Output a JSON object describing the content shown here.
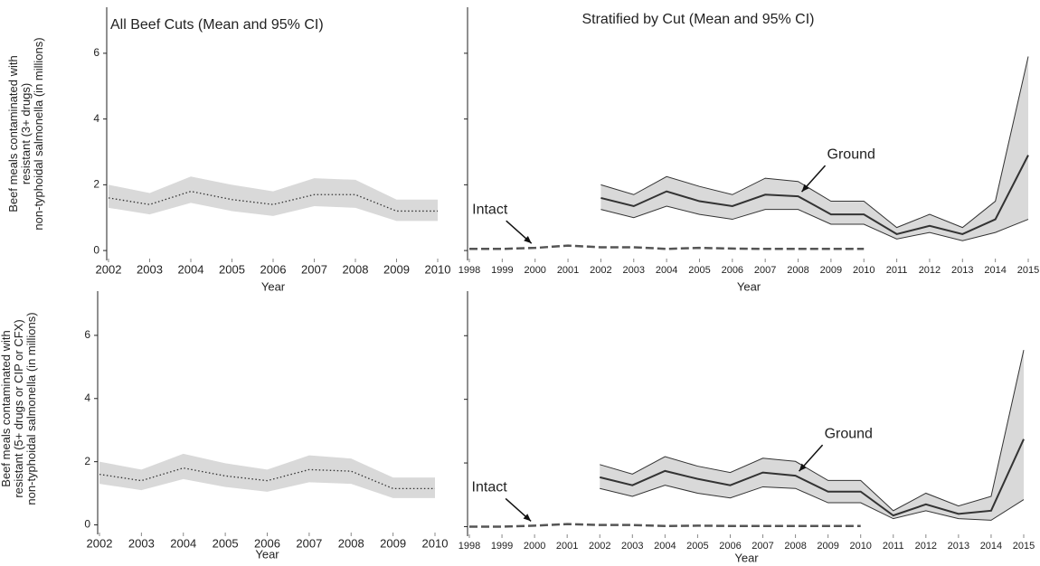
{
  "chart_data": [
    {
      "type": "line",
      "title": "All Beef Cuts (Mean and 95% CI)",
      "x_label": "Year",
      "y_label": [
        "Beef meals contaminated with",
        "resistant (3+ drugs)",
        "non-typhoidal salmonella (in millions)"
      ],
      "x": [
        2002,
        2003,
        2004,
        2005,
        2006,
        2007,
        2008,
        2009,
        2010
      ],
      "xlim": [
        2002,
        2010
      ],
      "xticks": [
        2002,
        2003,
        2004,
        2005,
        2006,
        2007,
        2008,
        2009,
        2010
      ],
      "ylim": [
        -0.3,
        7.4
      ],
      "yticks": [
        0,
        2,
        4,
        6
      ],
      "band_color": "#d9d9d9",
      "series": [
        {
          "color": "#333333",
          "line_style": "dotted",
          "values": [
            1.6,
            1.4,
            1.8,
            1.55,
            1.4,
            1.7,
            1.7,
            1.2,
            1.2
          ],
          "lower": [
            1.3,
            1.1,
            1.45,
            1.2,
            1.05,
            1.35,
            1.3,
            0.9,
            0.9
          ],
          "upper": [
            2.0,
            1.75,
            2.25,
            2.0,
            1.8,
            2.2,
            2.15,
            1.55,
            1.55
          ]
        }
      ]
    },
    {
      "type": "line",
      "title": "Stratified by Cut (Mean and 95% CI)",
      "x_label": "Year",
      "x": [
        1998,
        1999,
        2000,
        2001,
        2002,
        2003,
        2004,
        2005,
        2006,
        2007,
        2008,
        2009,
        2010,
        2011,
        2012,
        2013,
        2014,
        2015
      ],
      "xlim": [
        1998,
        2015
      ],
      "xticks": [
        1998,
        1999,
        2000,
        2001,
        2002,
        2003,
        2004,
        2005,
        2006,
        2007,
        2008,
        2009,
        2010,
        2011,
        2012,
        2013,
        2014,
        2015
      ],
      "ylim": [
        -0.3,
        7.4
      ],
      "yticks": [
        0,
        2,
        4,
        6
      ],
      "band_color": "#d9d9d9",
      "series": [
        {
          "name": "Ground",
          "color": "#333333",
          "line_style": "solid",
          "values": [
            null,
            null,
            null,
            null,
            1.6,
            1.35,
            1.8,
            1.5,
            1.35,
            1.7,
            1.65,
            1.1,
            1.1,
            0.5,
            0.75,
            0.5,
            0.95,
            2.9
          ],
          "lower": [
            null,
            null,
            null,
            null,
            1.25,
            1.0,
            1.35,
            1.1,
            0.95,
            1.25,
            1.25,
            0.8,
            0.8,
            0.35,
            0.55,
            0.3,
            0.55,
            0.95
          ],
          "upper": [
            null,
            null,
            null,
            null,
            2.0,
            1.7,
            2.25,
            1.95,
            1.7,
            2.2,
            2.1,
            1.5,
            1.5,
            0.7,
            1.1,
            0.7,
            1.5,
            5.9
          ]
        },
        {
          "name": "Intact",
          "color": "#555555",
          "line_style": "dashed",
          "values": [
            0.05,
            0.05,
            0.08,
            0.15,
            0.1,
            0.1,
            0.05,
            0.08,
            0.06,
            0.05,
            0.05,
            0.05,
            0.05,
            null,
            null,
            null,
            null,
            null
          ]
        }
      ]
    },
    {
      "type": "line",
      "x_label": "Year",
      "y_label": [
        "Beef meals contaminated with",
        "resistant (5+ drugs or CIP or CFX)",
        "non-typhoidal salmonella (in millions)"
      ],
      "x": [
        2002,
        2003,
        2004,
        2005,
        2006,
        2007,
        2008,
        2009,
        2010
      ],
      "xlim": [
        2002,
        2010
      ],
      "xticks": [
        2002,
        2003,
        2004,
        2005,
        2006,
        2007,
        2008,
        2009,
        2010
      ],
      "ylim": [
        -0.3,
        7.4
      ],
      "yticks": [
        0,
        2,
        4,
        6
      ],
      "band_color": "#d9d9d9",
      "series": [
        {
          "color": "#333333",
          "line_style": "dotted",
          "values": [
            1.6,
            1.4,
            1.8,
            1.55,
            1.4,
            1.75,
            1.7,
            1.15,
            1.15
          ],
          "lower": [
            1.3,
            1.1,
            1.45,
            1.2,
            1.05,
            1.35,
            1.3,
            0.85,
            0.85
          ],
          "upper": [
            2.0,
            1.75,
            2.25,
            1.95,
            1.75,
            2.2,
            2.1,
            1.5,
            1.5
          ]
        }
      ]
    },
    {
      "type": "line",
      "x_label": "Year",
      "x": [
        1998,
        1999,
        2000,
        2001,
        2002,
        2003,
        2004,
        2005,
        2006,
        2007,
        2008,
        2009,
        2010,
        2011,
        2012,
        2013,
        2014,
        2015
      ],
      "xlim": [
        1998,
        2015
      ],
      "xticks": [
        1998,
        1999,
        2000,
        2001,
        2002,
        2003,
        2004,
        2005,
        2006,
        2007,
        2008,
        2009,
        2010,
        2011,
        2012,
        2013,
        2014,
        2015
      ],
      "ylim": [
        -0.3,
        7.4
      ],
      "yticks": [
        0,
        2,
        4,
        6
      ],
      "band_color": "#d9d9d9",
      "series": [
        {
          "name": "Ground",
          "color": "#333333",
          "line_style": "solid",
          "values": [
            null,
            null,
            null,
            null,
            1.55,
            1.3,
            1.75,
            1.5,
            1.3,
            1.7,
            1.6,
            1.1,
            1.1,
            0.35,
            0.7,
            0.4,
            0.5,
            2.75
          ],
          "lower": [
            null,
            null,
            null,
            null,
            1.2,
            0.95,
            1.3,
            1.05,
            0.9,
            1.25,
            1.2,
            0.75,
            0.75,
            0.25,
            0.5,
            0.25,
            0.2,
            0.85
          ],
          "upper": [
            null,
            null,
            null,
            null,
            1.95,
            1.65,
            2.2,
            1.9,
            1.7,
            2.15,
            2.05,
            1.45,
            1.45,
            0.5,
            1.05,
            0.65,
            0.95,
            5.55
          ]
        },
        {
          "name": "Intact",
          "color": "#555555",
          "line_style": "dashed",
          "values": [
            0,
            0,
            0.03,
            0.08,
            0.05,
            0.05,
            0.02,
            0.03,
            0.02,
            0.02,
            0.02,
            0.02,
            0.02,
            null,
            null,
            null,
            null,
            null
          ]
        }
      ]
    }
  ]
}
